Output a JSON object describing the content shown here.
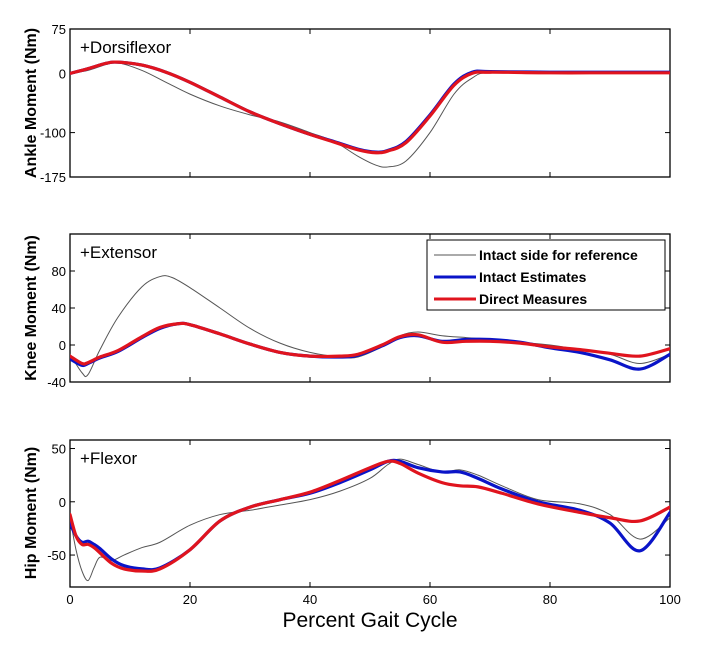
{
  "chart_data": {
    "type": "line",
    "xlabel": "Percent Gait Cycle",
    "xlim": [
      0,
      100
    ],
    "xticks": [
      0,
      20,
      40,
      60,
      80,
      100
    ],
    "legend": {
      "placement": "top-right of middle panel",
      "entries": [
        {
          "name": "Intact side for reference",
          "color": "#555555"
        },
        {
          "name": "Intact Estimates",
          "color": "#0a14c8"
        },
        {
          "name": "Direct Measures",
          "color": "#e0141e"
        }
      ]
    },
    "panels": [
      {
        "id": "ankle",
        "ylabel": "Ankle Moment (Nm)",
        "annotation": "+Dorsiflexor",
        "ylim": [
          -175,
          75
        ],
        "yticks": [
          75,
          0,
          -100,
          -175
        ],
        "series": [
          {
            "name": "Intact side for reference",
            "x": [
              0,
              3,
              6,
              8,
              12,
              16,
              20,
              25,
              30,
              35,
              40,
              44,
              48,
              51,
              53,
              56,
              60,
              64,
              67,
              70,
              80,
              90,
              100
            ],
            "y": [
              0,
              5,
              15,
              18,
              5,
              -15,
              -35,
              -55,
              -70,
              -82,
              -100,
              -115,
              -140,
              -155,
              -158,
              -148,
              -100,
              -35,
              -8,
              2,
              2,
              2,
              2
            ]
          },
          {
            "name": "Intact Estimates",
            "x": [
              0,
              3,
              6,
              8,
              12,
              16,
              20,
              25,
              30,
              35,
              40,
              44,
              48,
              51,
              53,
              56,
              60,
              64,
              67,
              70,
              80,
              90,
              100
            ],
            "y": [
              0,
              8,
              17,
              19,
              14,
              2,
              -15,
              -40,
              -65,
              -85,
              -103,
              -115,
              -128,
              -133,
              -130,
              -115,
              -70,
              -18,
              2,
              3,
              2,
              2,
              2
            ]
          },
          {
            "name": "Direct Measures",
            "x": [
              0,
              3,
              6,
              8,
              12,
              16,
              20,
              25,
              30,
              35,
              40,
              44,
              48,
              51,
              53,
              56,
              60,
              64,
              67,
              70,
              80,
              90,
              100
            ],
            "y": [
              0,
              8,
              17,
              19,
              14,
              2,
              -15,
              -40,
              -65,
              -85,
              -103,
              -116,
              -129,
              -134,
              -131,
              -117,
              -72,
              -20,
              0,
              2,
              1,
              1,
              1
            ]
          }
        ]
      },
      {
        "id": "knee",
        "ylabel": "Knee Moment (Nm)",
        "annotation": "+Extensor",
        "ylim": [
          -40,
          120
        ],
        "yticks": [
          80,
          40,
          0,
          -40
        ],
        "series": [
          {
            "name": "Intact side for reference",
            "x": [
              0,
              2,
              3,
              5,
              8,
              12,
              15,
              17,
              20,
              25,
              30,
              35,
              40,
              45,
              48,
              52,
              55,
              58,
              62,
              66,
              70,
              75,
              80,
              85,
              90,
              95,
              100
            ],
            "y": [
              -10,
              -30,
              -32,
              -5,
              30,
              63,
              74,
              73,
              62,
              40,
              18,
              2,
              -8,
              -13,
              -13,
              -2,
              10,
              14,
              10,
              8,
              6,
              3,
              0,
              -5,
              -10,
              -20,
              -10
            ]
          },
          {
            "name": "Intact Estimates",
            "x": [
              0,
              2,
              3,
              5,
              8,
              12,
              15,
              18,
              20,
              25,
              30,
              35,
              40,
              45,
              48,
              52,
              55,
              58,
              62,
              66,
              70,
              75,
              80,
              85,
              90,
              95,
              100
            ],
            "y": [
              -15,
              -22,
              -20,
              -14,
              -7,
              8,
              18,
              23,
              22,
              12,
              1,
              -8,
              -12,
              -13,
              -11,
              -1,
              8,
              10,
              4,
              6,
              6,
              3,
              -3,
              -8,
              -16,
              -26,
              -10
            ]
          },
          {
            "name": "Direct Measures",
            "x": [
              0,
              2,
              3,
              5,
              8,
              12,
              15,
              18,
              20,
              25,
              30,
              35,
              40,
              45,
              48,
              52,
              55,
              58,
              62,
              66,
              70,
              75,
              80,
              85,
              90,
              95,
              100
            ],
            "y": [
              -12,
              -20,
              -19,
              -13,
              -6,
              9,
              19,
              23,
              22,
              12,
              1,
              -8,
              -12,
              -12,
              -10,
              0,
              9,
              11,
              3,
              4,
              4,
              2,
              -2,
              -5,
              -9,
              -12,
              -4
            ]
          }
        ]
      },
      {
        "id": "hip",
        "ylabel": "Hip Moment (Nm)",
        "annotation": "+Flexor",
        "ylim": [
          -80,
          58
        ],
        "yticks": [
          50,
          0,
          -50
        ],
        "series": [
          {
            "name": "Intact side for reference",
            "x": [
              0,
              1,
              2,
              3,
              4,
              5,
              7,
              9,
              12,
              15,
              20,
              25,
              30,
              35,
              40,
              45,
              50,
              53,
              55,
              58,
              62,
              65,
              68,
              72,
              78,
              85,
              90,
              95,
              100
            ],
            "y": [
              -15,
              -45,
              -65,
              -74,
              -62,
              -52,
              -55,
              -50,
              -43,
              -38,
              -22,
              -12,
              -8,
              -3,
              2,
              10,
              22,
              35,
              40,
              35,
              28,
              30,
              25,
              15,
              2,
              -2,
              -12,
              -35,
              -15
            ]
          },
          {
            "name": "Intact Estimates",
            "x": [
              0,
              1,
              2,
              3,
              4,
              5,
              7,
              9,
              12,
              15,
              20,
              25,
              30,
              35,
              40,
              45,
              50,
              53,
              55,
              58,
              62,
              65,
              68,
              72,
              78,
              85,
              90,
              95,
              100
            ],
            "y": [
              -20,
              -32,
              -38,
              -37,
              -40,
              -44,
              -54,
              -60,
              -63,
              -62,
              -45,
              -18,
              -5,
              2,
              8,
              18,
              30,
              38,
              38,
              32,
              28,
              28,
              22,
              12,
              0,
              -8,
              -20,
              -46,
              -10
            ]
          },
          {
            "name": "Direct Measures",
            "x": [
              0,
              1,
              2,
              3,
              4,
              5,
              7,
              9,
              12,
              15,
              20,
              25,
              30,
              35,
              40,
              45,
              50,
              53,
              55,
              58,
              62,
              65,
              68,
              72,
              78,
              85,
              90,
              95,
              100
            ],
            "y": [
              -12,
              -32,
              -40,
              -40,
              -43,
              -48,
              -58,
              -63,
              -65,
              -63,
              -45,
              -18,
              -5,
              2,
              9,
              20,
              32,
              38,
              36,
              27,
              18,
              15,
              14,
              8,
              -2,
              -10,
              -15,
              -18,
              -5
            ]
          }
        ]
      }
    ]
  }
}
